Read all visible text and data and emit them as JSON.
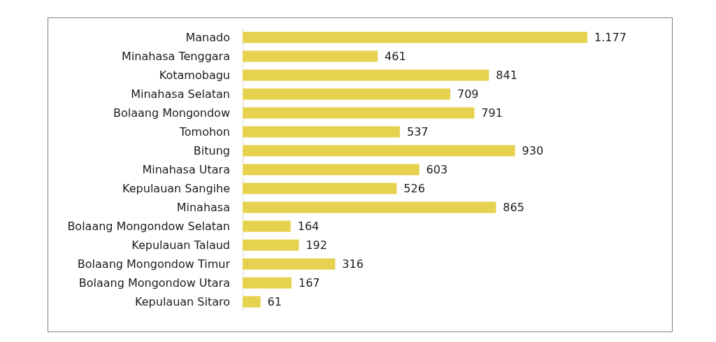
{
  "chart_data": {
    "type": "bar",
    "orientation": "horizontal",
    "categories": [
      "Manado",
      "Minahasa Tenggara",
      "Kotamobagu",
      "Minahasa Selatan",
      "Bolaang Mongondow",
      "Tomohon",
      "Bitung",
      "Minahasa Utara",
      "Kepulauan Sangihe",
      "Minahasa",
      "Bolaang Mongondow Selatan",
      "Kepulauan Talaud",
      "Bolaang Mongondow Timur",
      "Bolaang Mongondow Utara",
      "Kepulauan Sitaro"
    ],
    "values": [
      1177,
      461,
      841,
      709,
      791,
      537,
      930,
      603,
      526,
      865,
      164,
      192,
      316,
      167,
      61
    ],
    "value_labels": [
      "1.177",
      "461",
      "841",
      "709",
      "791",
      "537",
      "930",
      "603",
      "526",
      "865",
      "164",
      "192",
      "316",
      "167",
      "61"
    ],
    "color": "#e6d24e"
  }
}
